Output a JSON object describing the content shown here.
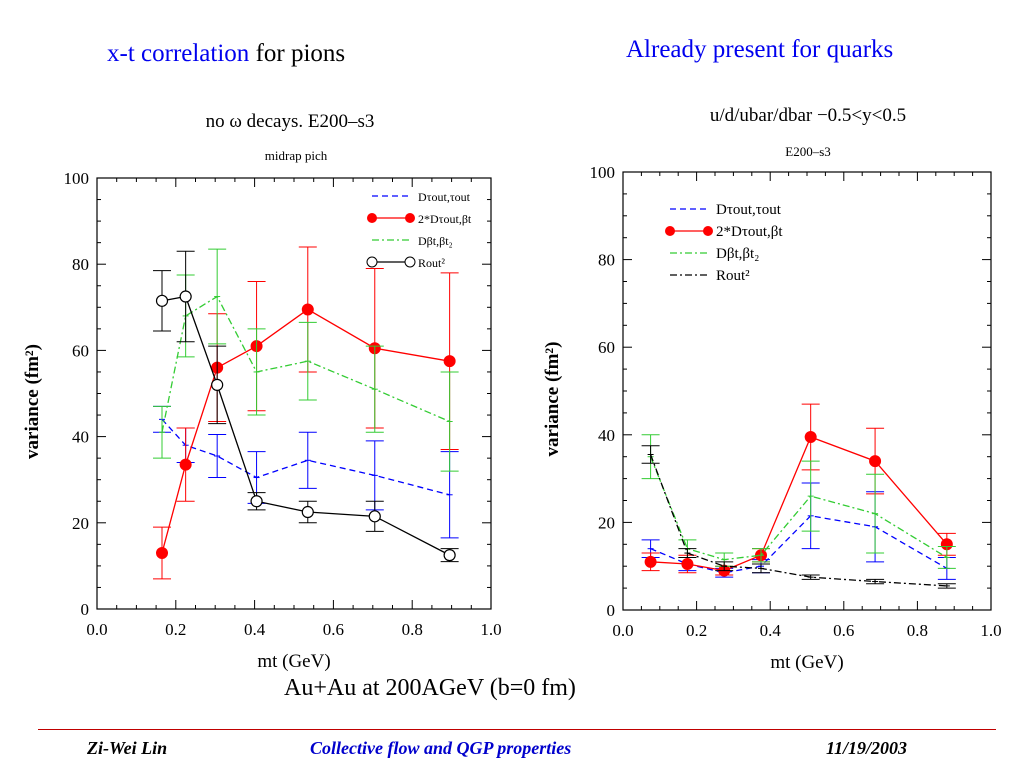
{
  "heading_left": {
    "blue": "x-t correlation",
    "black": " for pions"
  },
  "heading_right": "Already present for quarks",
  "subtitle": "Au+Au at 200AGeV (b=0 fm)",
  "footer": {
    "author": "Zi-Wei Lin",
    "title": "Collective flow and QGP properties",
    "date": "11/19/2003"
  },
  "colors": {
    "blue": "#0000ff",
    "red": "#ff0000",
    "green": "#33cc33",
    "black": "#000000"
  },
  "chart_data": [
    {
      "type": "line",
      "title": "no ω decays. E200–s3",
      "subtitle": "midrap pich",
      "xlabel": "mt (GeV)",
      "ylabel": "variance (fm²)",
      "xlim": [
        0,
        1.0
      ],
      "ylim": [
        0,
        100
      ],
      "xticks": [
        "0.0",
        "0.2",
        "0.4",
        "0.6",
        "0.8",
        "1.0"
      ],
      "yticks": [
        "0",
        "20",
        "40",
        "60",
        "80",
        "100"
      ],
      "legend_position": "top-right",
      "grid": false,
      "series": [
        {
          "name": "Dτout,τout",
          "key": "blue",
          "color": "#0000ff",
          "style": "dashed",
          "marker": "none",
          "x": [
            0.165,
            0.225,
            0.305,
            0.405,
            0.535,
            0.705,
            0.895
          ],
          "y": [
            44,
            38,
            35.5,
            30.5,
            34.5,
            31,
            26.5
          ],
          "err": [
            3,
            4,
            5,
            6,
            6.5,
            8,
            10
          ]
        },
        {
          "name": "2*Dτout,βt",
          "key": "red",
          "color": "#ff0000",
          "style": "solid",
          "marker": "filled-circle",
          "x": [
            0.165,
            0.225,
            0.305,
            0.405,
            0.535,
            0.705,
            0.895
          ],
          "y": [
            13,
            33.5,
            56,
            61,
            69.5,
            60.5,
            57.5
          ],
          "err": [
            6,
            8.5,
            12.5,
            15,
            14.5,
            18.5,
            20.5
          ]
        },
        {
          "name": "Dβt,βt₂",
          "key": "green",
          "color": "#33cc33",
          "style": "dashdot",
          "marker": "none",
          "x": [
            0.165,
            0.225,
            0.305,
            0.405,
            0.535,
            0.705,
            0.895
          ],
          "y": [
            41,
            68,
            72.5,
            55,
            57.5,
            51,
            43.5
          ],
          "err": [
            6,
            9.5,
            11,
            10,
            9,
            10,
            11.5
          ]
        },
        {
          "name": "Rout²",
          "key": "black",
          "color": "#000000",
          "style": "solid",
          "marker": "open-circle",
          "x": [
            0.165,
            0.225,
            0.305,
            0.405,
            0.535,
            0.705,
            0.895
          ],
          "y": [
            71.5,
            72.5,
            52,
            25,
            22.5,
            21.5,
            12.5
          ],
          "err": [
            7,
            10.5,
            9,
            2,
            2.5,
            3.5,
            1.5
          ]
        }
      ]
    },
    {
      "type": "line",
      "title": "u/d/ubar/dbar −0.5<y<0.5",
      "subtitle": "E200–s3",
      "xlabel": "mt (GeV)",
      "ylabel": "variance (fm²)",
      "xlim": [
        0,
        1.0
      ],
      "ylim": [
        0,
        100
      ],
      "xticks": [
        "0.0",
        "0.2",
        "0.4",
        "0.6",
        "0.8",
        "1.0"
      ],
      "yticks": [
        "0",
        "20",
        "40",
        "60",
        "80",
        "100"
      ],
      "legend_position": "top-left",
      "grid": false,
      "series": [
        {
          "name": "Dτout,τout",
          "key": "blue",
          "color": "#0000ff",
          "style": "dashed",
          "marker": "none",
          "x": [
            0.075,
            0.175,
            0.275,
            0.375,
            0.51,
            0.685,
            0.88
          ],
          "y": [
            14,
            10.5,
            8.5,
            10,
            21.5,
            19,
            9.5
          ],
          "err": [
            2,
            1.5,
            1,
            1.5,
            7.5,
            8,
            2.5
          ]
        },
        {
          "name": "2*Dτout,βt",
          "key": "red",
          "color": "#ff0000",
          "style": "solid",
          "marker": "filled-circle",
          "x": [
            0.075,
            0.175,
            0.275,
            0.375,
            0.51,
            0.685,
            0.88
          ],
          "y": [
            11,
            10.5,
            9,
            12.5,
            39.5,
            34,
            15
          ],
          "err": [
            2,
            2,
            1,
            1.5,
            7.5,
            7.5,
            2.5
          ]
        },
        {
          "name": "Dβt,βt₂",
          "key": "green",
          "color": "#33cc33",
          "style": "dashdot",
          "marker": "none",
          "x": [
            0.075,
            0.175,
            0.275,
            0.375,
            0.51,
            0.685,
            0.88
          ],
          "y": [
            35,
            14,
            11.5,
            12.5,
            26,
            22,
            12
          ],
          "err": [
            5,
            2,
            1.5,
            1.5,
            8,
            9,
            2.5
          ]
        },
        {
          "name": "Rout²",
          "key": "black",
          "color": "#000000",
          "style": "dashdot",
          "marker": "none",
          "x": [
            0.075,
            0.175,
            0.275,
            0.375,
            0.51,
            0.685,
            0.88
          ],
          "y": [
            35.5,
            13,
            10,
            9.5,
            7.5,
            6.5,
            5.5
          ],
          "err": [
            2,
            1,
            1,
            1,
            0.5,
            0.5,
            0.5
          ]
        }
      ]
    }
  ]
}
